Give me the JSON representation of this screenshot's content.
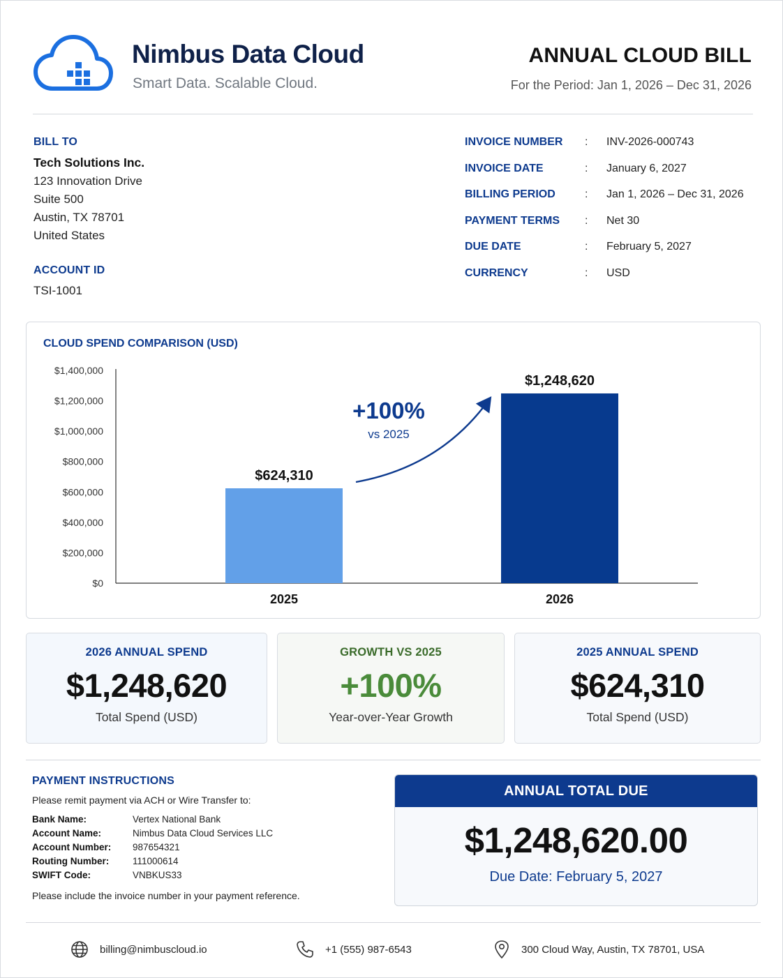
{
  "header": {
    "brand_name": "Nimbus Data Cloud",
    "tagline": "Smart Data. Scalable Cloud.",
    "doc_title": "ANNUAL CLOUD BILL",
    "period": "For the Period: Jan 1, 2026 – Dec 31, 2026",
    "logo_icon": "cloud-icon"
  },
  "bill_to": {
    "label": "BILL TO",
    "name": "Tech Solutions Inc.",
    "lines": [
      "123 Innovation Drive",
      "Suite 500",
      "Austin, TX 78701",
      "United States"
    ]
  },
  "account": {
    "label": "ACCOUNT ID",
    "value": "TSI-1001"
  },
  "invoice": {
    "separator": ":",
    "rows": [
      {
        "key": "INVOICE NUMBER",
        "value": "INV-2026-000743"
      },
      {
        "key": "INVOICE DATE",
        "value": "January 6, 2027"
      },
      {
        "key": "BILLING PERIOD",
        "value": "Jan 1, 2026 – Dec 31, 2026"
      },
      {
        "key": "PAYMENT TERMS",
        "value": "Net 30"
      },
      {
        "key": "DUE DATE",
        "value": "February 5, 2027"
      },
      {
        "key": "CURRENCY",
        "value": "USD"
      }
    ]
  },
  "chart_data": {
    "type": "bar",
    "title": "CLOUD SPEND COMPARISON (USD)",
    "categories": [
      "2025",
      "2026"
    ],
    "values": [
      624310,
      1248620
    ],
    "value_labels": [
      "$624,310",
      "$1,248,620"
    ],
    "colors": [
      "#62a0e8",
      "#073a8e"
    ],
    "ylim": [
      0,
      1400000
    ],
    "yticks": [
      0,
      200000,
      400000,
      600000,
      800000,
      1000000,
      1200000,
      1400000
    ],
    "ytick_labels": [
      "$0",
      "$200,000",
      "$400,000",
      "$600,000",
      "$800,000",
      "$1,000,000",
      "$1,200,000",
      "$1,400,000"
    ],
    "xlabel": "",
    "ylabel": "",
    "grid": false,
    "annotation": {
      "value": "+100%",
      "sub": "vs 2025",
      "color": "#0d3a8e"
    }
  },
  "kpis": [
    {
      "label": "2026 ANNUAL SPEND",
      "value": "$1,248,620",
      "sub": "Total Spend (USD)"
    },
    {
      "label": "GROWTH VS 2025",
      "value": "+100%",
      "sub": "Year-over-Year Growth"
    },
    {
      "label": "2025 ANNUAL SPEND",
      "value": "$624,310",
      "sub": "Total Spend (USD)"
    }
  ],
  "payment": {
    "label": "PAYMENT INSTRUCTIONS",
    "intro": "Please remit payment via ACH or Wire Transfer to:",
    "rows": [
      {
        "key": "Bank Name:",
        "value": "Vertex National Bank"
      },
      {
        "key": "Account Name:",
        "value": "Nimbus Data Cloud Services LLC"
      },
      {
        "key": "Account Number:",
        "value": "987654321"
      },
      {
        "key": "Routing Number:",
        "value": "111000614"
      },
      {
        "key": "SWIFT Code:",
        "value": "VNBKUS33"
      }
    ],
    "note": "Please include the invoice number in your payment reference."
  },
  "total_due": {
    "label": "ANNUAL TOTAL DUE",
    "amount": "$1,248,620.00",
    "due_date": "Due Date: February 5, 2027"
  },
  "footer": {
    "email": "billing@nimbuscloud.io",
    "phone": "+1 (555) 987-6543",
    "address": "300 Cloud Way, Austin, TX 78701, USA",
    "icons": [
      "globe-icon",
      "phone-icon",
      "location-pin-icon"
    ]
  },
  "colors": {
    "primary": "#0d3a8e",
    "accent_light": "#62a0e8",
    "growth": "#4a8b3a"
  }
}
